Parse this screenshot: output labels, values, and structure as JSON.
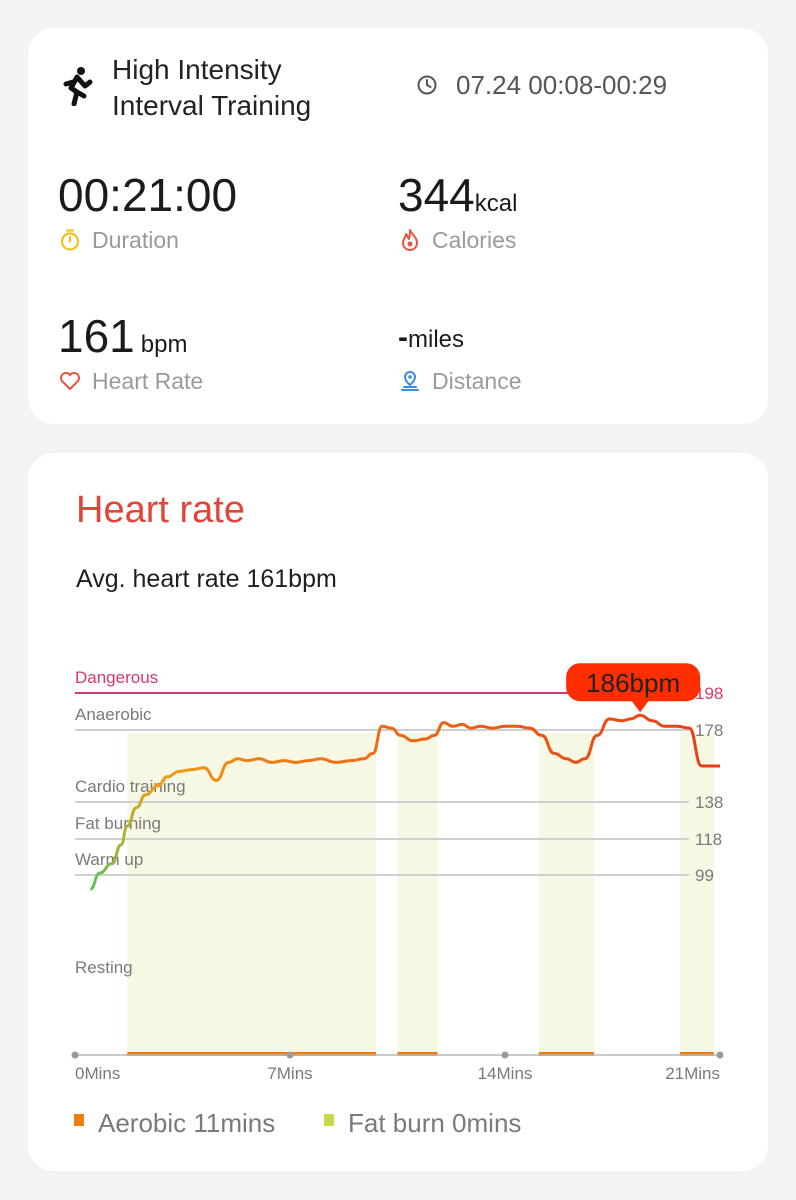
{
  "workout": {
    "title_line1": "High Intensity",
    "title_line2": "Interval Training",
    "icon": "running-person-icon",
    "datetime": "07.24 00:08-00:29",
    "datetime_icon": "clock-icon"
  },
  "metrics": {
    "duration": {
      "value": "00:21:00",
      "unit": "",
      "label": "Duration",
      "icon": "stopwatch-icon",
      "color": "#f0c419"
    },
    "calories": {
      "value": "344",
      "unit": "kcal",
      "label": "Calories",
      "icon": "flame-icon",
      "color": "#e9543f"
    },
    "heart_rate": {
      "value": "161",
      "unit": "bpm",
      "label": "Heart Rate",
      "icon": "heart-icon",
      "color": "#e9543f"
    },
    "distance": {
      "value": "-",
      "unit": "miles",
      "label": "Distance",
      "icon": "location-pin-icon",
      "color": "#3b8be0"
    }
  },
  "heart_rate_section": {
    "title": "Heart rate",
    "avg_label": "Avg. heart rate 161bpm",
    "peak_label": "186bpm"
  },
  "chart_data": {
    "type": "line",
    "title": "Heart rate",
    "xlabel": "",
    "ylabel": "",
    "x_ticks": [
      "0Mins",
      "7Mins",
      "14Mins",
      "21Mins"
    ],
    "xlim": [
      0,
      21
    ],
    "zones": [
      {
        "name": "Dangerous",
        "threshold": 198
      },
      {
        "name": "Anaerobic",
        "threshold": 178
      },
      {
        "name": "Cardio training",
        "threshold": 138
      },
      {
        "name": "Fat burning",
        "threshold": 118
      },
      {
        "name": "Warm up",
        "threshold": 99
      },
      {
        "name": "Resting",
        "threshold": null
      }
    ],
    "threshold_labels": [
      "198",
      "178",
      "138",
      "118",
      "99"
    ],
    "series": [
      {
        "x": [
          0.5,
          0.8,
          1.2,
          1.5,
          1.7,
          2.0,
          2.3,
          2.7,
          3.0,
          3.4,
          3.8,
          4.2,
          4.6,
          5.0,
          5.3,
          5.6,
          6.0,
          6.4,
          6.8,
          7.2,
          7.6,
          8.0,
          8.5,
          9.0,
          9.4,
          9.7,
          10.0,
          10.3,
          10.6,
          11.0,
          11.4,
          11.7,
          12.0,
          12.3,
          12.6,
          12.9,
          13.2,
          13.6,
          14.0,
          14.4,
          14.8,
          15.2,
          15.6,
          16.0,
          16.3,
          16.6,
          17.0,
          17.4,
          17.8,
          18.1,
          18.4,
          18.8,
          19.2,
          19.6,
          20.0,
          20.4,
          20.7,
          21.0
        ],
        "y": [
          95,
          100,
          105,
          115,
          125,
          135,
          142,
          147,
          152,
          155,
          156,
          157,
          150,
          160,
          162,
          161,
          162,
          160,
          161,
          160,
          161,
          162,
          160,
          161,
          162,
          165,
          180,
          179,
          175,
          172,
          173,
          175,
          182,
          180,
          181,
          179,
          180,
          179,
          180,
          180,
          179,
          175,
          165,
          162,
          160,
          162,
          175,
          184,
          183,
          184,
          186,
          183,
          180,
          180,
          179,
          158,
          158,
          158
        ]
      }
    ],
    "peak": {
      "x": 18.4,
      "y": 186,
      "label": "186bpm"
    },
    "highlight_ranges": [
      [
        1.7,
        9.8
      ],
      [
        10.5,
        11.8
      ],
      [
        15.1,
        16.9
      ],
      [
        19.7,
        20.8
      ]
    ],
    "legend": [
      {
        "name": "Aerobic",
        "value_label": "Aerobic 11mins",
        "color": "#f07c10"
      },
      {
        "name": "Fat burn",
        "value_label": "Fat burn 0mins",
        "color": "#c8d84a"
      }
    ]
  },
  "colors": {
    "line_start": "#5cc35a",
    "line_mid": "#f0a014",
    "line_high": "#ee3a14",
    "dangerous_line": "#d8386a",
    "grid": "#cfcfcf",
    "highlight_fill": "#f7f8e4",
    "bar_aerobic": "#f07c10"
  }
}
